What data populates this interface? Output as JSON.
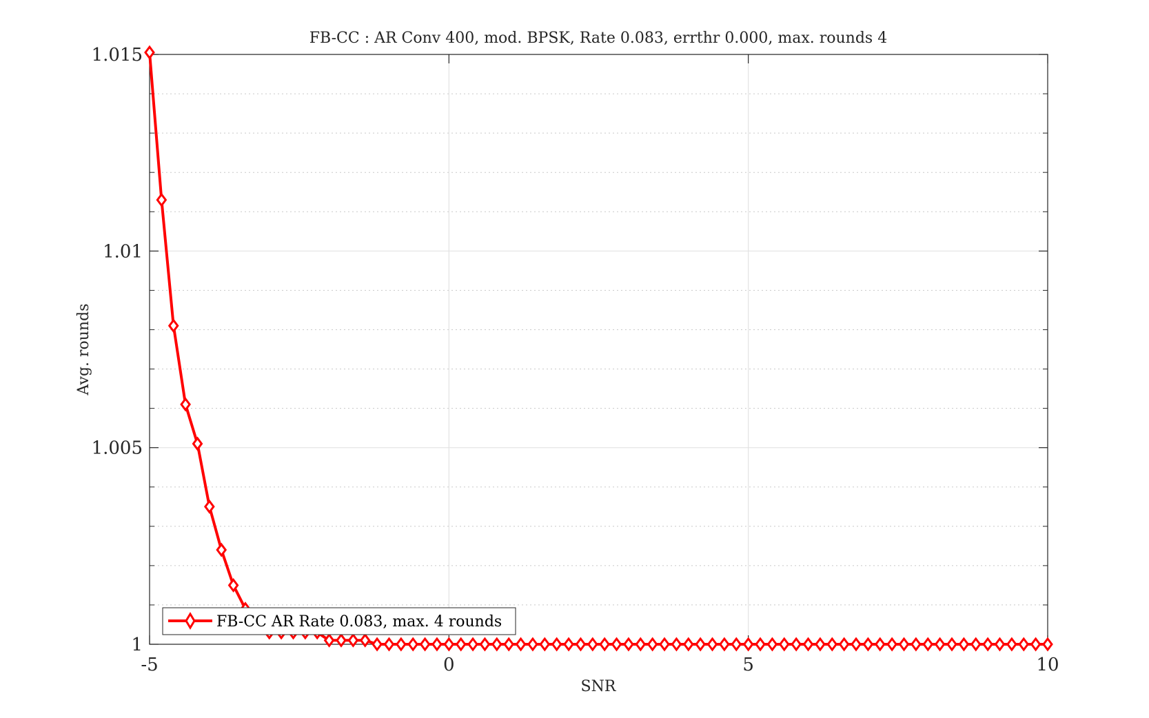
{
  "chart_data": {
    "type": "line",
    "title": "FB-CC : AR Conv 400, mod. BPSK, Rate 0.083, errthr 0.000, max. rounds 4",
    "xlabel": "SNR",
    "ylabel": "Avg. rounds",
    "xlim": [
      -5,
      10
    ],
    "ylim": [
      1,
      1.015
    ],
    "xticks": [
      -5,
      0,
      5,
      10
    ],
    "xtick_labels": [
      "-5",
      "0",
      "5",
      "10"
    ],
    "yticks": [
      1,
      1.005,
      1.01,
      1.015
    ],
    "ytick_labels": [
      "1",
      "1.005",
      "1.01",
      "1.015"
    ],
    "y_minor_step": 0.001,
    "grid": true,
    "legend_position": "bottom-left",
    "series": [
      {
        "name": "FB-CC AR Rate 0.083, max. 4 rounds",
        "color": "#ff0000",
        "marker": "diamond",
        "x": [
          -5,
          -4.8,
          -4.6,
          -4.4,
          -4.2,
          -4,
          -3.8,
          -3.6,
          -3.4,
          -3.2,
          -3,
          -2.8,
          -2.6,
          -2.4,
          -2.2,
          -2,
          -1.8,
          -1.6,
          -1.4,
          -1.2,
          -1,
          -0.8,
          -0.6,
          -0.4,
          -0.2,
          0,
          0.2,
          0.4,
          0.6,
          0.8,
          1,
          1.2,
          1.4,
          1.6,
          1.8,
          2,
          2.2,
          2.4,
          2.6,
          2.8,
          3,
          3.2,
          3.4,
          3.6,
          3.8,
          4,
          4.2,
          4.4,
          4.6,
          4.8,
          5,
          5.2,
          5.4,
          5.6,
          5.8,
          6,
          6.2,
          6.4,
          6.6,
          6.8,
          7,
          7.2,
          7.4,
          7.6,
          7.8,
          8,
          8.2,
          8.4,
          8.6,
          8.8,
          9,
          9.2,
          9.4,
          9.6,
          9.8,
          10
        ],
        "y": [
          1.01505,
          1.0113,
          1.0081,
          1.0061,
          1.0051,
          1.0035,
          1.0024,
          1.0015,
          1.0009,
          1.0005,
          1.0003,
          1.0003,
          1.0003,
          1.0003,
          1.0003,
          1.0001,
          1.0001,
          1.0001,
          1.0001,
          1.0,
          1.0,
          1.0,
          1.0,
          1.0,
          1.0,
          1.0,
          1.0,
          1.0,
          1.0,
          1.0,
          1.0,
          1.0,
          1.0,
          1.0,
          1.0,
          1.0,
          1.0,
          1.0,
          1.0,
          1.0,
          1.0,
          1.0,
          1.0,
          1.0,
          1.0,
          1.0,
          1.0,
          1.0,
          1.0,
          1.0,
          1.0,
          1.0,
          1.0,
          1.0,
          1.0,
          1.0,
          1.0,
          1.0,
          1.0,
          1.0,
          1.0,
          1.0,
          1.0,
          1.0,
          1.0,
          1.0,
          1.0,
          1.0,
          1.0,
          1.0,
          1.0,
          1.0,
          1.0,
          1.0,
          1.0,
          1.0
        ]
      }
    ]
  }
}
